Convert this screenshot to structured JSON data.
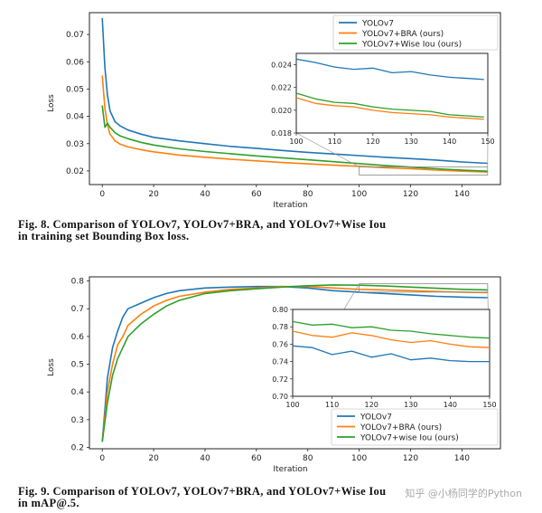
{
  "figures": [
    {
      "caption_lines": [
        "Fig. 8.  Comparison of YOLOv7, YOLOv7+BRA, and YOLOv7+Wise Iou",
        "in training set Bounding Box loss."
      ]
    },
    {
      "caption_lines": [
        "Fig. 9.  Comparison of YOLOv7, YOLOv7+BRA, and YOLOv7+Wise Iou",
        "in mAP@.5."
      ]
    }
  ],
  "watermark": "知乎 @小杨同学的Python",
  "colors": {
    "YOLOv7": "#1f77b4",
    "BRA": "#ff7f0e",
    "WiseIou": "#2ca02c"
  },
  "chart_data": [
    {
      "type": "line",
      "title": "",
      "xlabel": "Iteration",
      "ylabel": "Loss",
      "xlim": [
        -5,
        155
      ],
      "ylim": [
        0.015,
        0.078
      ],
      "xticks": [
        0,
        20,
        40,
        60,
        80,
        100,
        120,
        140
      ],
      "yticks": [
        0.02,
        0.03,
        0.04,
        0.05,
        0.06,
        0.07
      ],
      "ytick_labels": [
        "0.02",
        "0.03",
        "0.04",
        "0.05",
        "0.06",
        "0.07"
      ],
      "legend_position": "top-right",
      "x": [
        0,
        1,
        2,
        3,
        5,
        7,
        10,
        15,
        20,
        30,
        40,
        50,
        60,
        70,
        80,
        90,
        100,
        110,
        120,
        130,
        140,
        150
      ],
      "series": [
        {
          "name": "YOLOv7",
          "color": "#1f77b4",
          "values": [
            0.076,
            0.058,
            0.048,
            0.042,
            0.038,
            0.0365,
            0.035,
            0.0335,
            0.0323,
            0.031,
            0.03,
            0.029,
            0.0283,
            0.0275,
            0.0268,
            0.0262,
            0.0256,
            0.025,
            0.0245,
            0.024,
            0.0233,
            0.0228
          ]
        },
        {
          "name": "YOLOv7+BRA (ours)",
          "color": "#ff7f0e",
          "values": [
            0.055,
            0.043,
            0.037,
            0.0335,
            0.031,
            0.0298,
            0.0288,
            0.0278,
            0.027,
            0.0258,
            0.025,
            0.0243,
            0.0237,
            0.0231,
            0.0226,
            0.0221,
            0.0217,
            0.0212,
            0.0208,
            0.0203,
            0.0199,
            0.0196
          ]
        },
        {
          "name": "YOLOv7+Wise Iou (ours)",
          "color": "#2ca02c",
          "values": [
            0.044,
            0.036,
            0.0375,
            0.036,
            0.034,
            0.0328,
            0.0318,
            0.0305,
            0.0295,
            0.0281,
            0.0271,
            0.0263,
            0.0255,
            0.0248,
            0.0241,
            0.0234,
            0.0227,
            0.022,
            0.0214,
            0.0208,
            0.0203,
            0.0199
          ]
        }
      ],
      "inset": {
        "xlim": [
          100,
          150
        ],
        "ylim": [
          0.018,
          0.025
        ],
        "xticks": [
          100,
          110,
          120,
          130,
          140,
          150
        ],
        "yticks": [
          0.018,
          0.02,
          0.022,
          0.024
        ],
        "ytick_labels": [
          "0.018",
          "0.020",
          "0.022",
          "0.024"
        ],
        "x": [
          100,
          105,
          110,
          115,
          120,
          125,
          130,
          135,
          140,
          145,
          149
        ],
        "series": [
          {
            "name": "YOLOv7",
            "values": [
              0.0245,
              0.0242,
              0.0238,
              0.0236,
              0.0237,
              0.0233,
              0.0234,
              0.0231,
              0.0229,
              0.0228,
              0.0227
            ]
          },
          {
            "name": "YOLOv7+BRA (ours)",
            "values": [
              0.0211,
              0.0206,
              0.0204,
              0.0203,
              0.02,
              0.0198,
              0.0197,
              0.0196,
              0.0194,
              0.0193,
              0.0192
            ]
          },
          {
            "name": "YOLOv7+Wise Iou (ours)",
            "values": [
              0.0215,
              0.021,
              0.0207,
              0.0206,
              0.0203,
              0.0201,
              0.02,
              0.0199,
              0.0196,
              0.0195,
              0.0194
            ]
          }
        ]
      }
    },
    {
      "type": "line",
      "title": "",
      "xlabel": "Iteration",
      "ylabel": "Loss",
      "xlim": [
        -5,
        155
      ],
      "ylim": [
        0.195,
        0.815
      ],
      "xticks": [
        0,
        20,
        40,
        60,
        80,
        100,
        120,
        140
      ],
      "yticks": [
        0.2,
        0.3,
        0.4,
        0.5,
        0.6,
        0.7,
        0.8
      ],
      "ytick_labels": [
        "0.2",
        "0.3",
        "0.4",
        "0.5",
        "0.6",
        "0.7",
        "0.8"
      ],
      "legend_position": "bottom-right",
      "x": [
        0,
        2,
        4,
        6,
        8,
        10,
        15,
        20,
        25,
        30,
        40,
        50,
        60,
        70,
        80,
        90,
        100,
        110,
        120,
        130,
        140,
        150
      ],
      "series": [
        {
          "name": "YOLOv7",
          "color": "#1f77b4",
          "values": [
            0.22,
            0.45,
            0.56,
            0.62,
            0.67,
            0.7,
            0.72,
            0.74,
            0.755,
            0.765,
            0.775,
            0.778,
            0.78,
            0.78,
            0.775,
            0.765,
            0.76,
            0.755,
            0.75,
            0.745,
            0.742,
            0.74
          ]
        },
        {
          "name": "YOLOv7+BRA (ours)",
          "color": "#ff7f0e",
          "values": [
            0.22,
            0.4,
            0.5,
            0.57,
            0.6,
            0.64,
            0.68,
            0.71,
            0.73,
            0.745,
            0.76,
            0.77,
            0.775,
            0.78,
            0.78,
            0.775,
            0.77,
            0.768,
            0.765,
            0.762,
            0.76,
            0.758
          ]
        },
        {
          "name": "YOLOv7+wise Iou (ours)",
          "color": "#2ca02c",
          "values": [
            0.22,
            0.36,
            0.46,
            0.52,
            0.56,
            0.6,
            0.645,
            0.68,
            0.71,
            0.73,
            0.755,
            0.765,
            0.772,
            0.778,
            0.783,
            0.786,
            0.785,
            0.782,
            0.778,
            0.774,
            0.77,
            0.768
          ]
        }
      ],
      "inset": {
        "xlim": [
          100,
          150
        ],
        "ylim": [
          0.7,
          0.8
        ],
        "xticks": [
          100,
          110,
          120,
          130,
          140,
          150
        ],
        "yticks": [
          0.7,
          0.72,
          0.74,
          0.76,
          0.78,
          0.8
        ],
        "ytick_labels": [
          "0.70",
          "0.72",
          "0.74",
          "0.76",
          "0.78",
          "0.80"
        ],
        "x": [
          100,
          105,
          110,
          115,
          120,
          125,
          130,
          135,
          140,
          145,
          150
        ],
        "series": [
          {
            "name": "YOLOv7",
            "values": [
              0.758,
              0.756,
              0.748,
              0.752,
              0.745,
              0.749,
              0.742,
              0.744,
              0.741,
              0.74,
              0.74
            ]
          },
          {
            "name": "YOLOv7+BRA (ours)",
            "values": [
              0.775,
              0.77,
              0.768,
              0.773,
              0.77,
              0.765,
              0.762,
              0.764,
              0.76,
              0.757,
              0.756
            ]
          },
          {
            "name": "YOLOv7+wise Iou (ours)",
            "values": [
              0.786,
              0.782,
              0.783,
              0.779,
              0.78,
              0.776,
              0.775,
              0.772,
              0.77,
              0.768,
              0.767
            ]
          }
        ]
      }
    }
  ]
}
